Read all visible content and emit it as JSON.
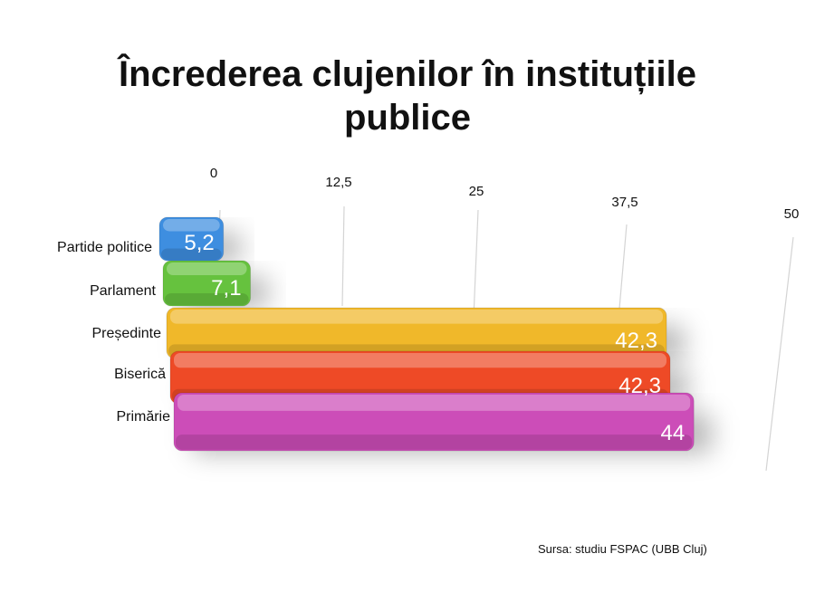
{
  "title": "Încrederea clujenilor în instituțiile\npublice",
  "source": "Sursa: studiu FSPAC (UBB Cluj)",
  "chart_data": {
    "type": "bar",
    "orientation": "horizontal",
    "title": "Încrederea clujenilor în instituțiile publice",
    "categories": [
      "Partide politice",
      "Parlament",
      "Președinte",
      "Biserică",
      "Primărie"
    ],
    "values": [
      5.2,
      7.1,
      42.3,
      42.3,
      44
    ],
    "value_labels": [
      "5,2",
      "7,1",
      "42,3",
      "42,3",
      "44"
    ],
    "colors": [
      "#3e8ee0",
      "#66c23e",
      "#f0b82a",
      "#ee4a26",
      "#cc4db8"
    ],
    "xlim": [
      0,
      50
    ],
    "ticks": [
      0,
      12.5,
      25,
      37.5,
      50
    ],
    "tick_labels": [
      "0",
      "12,5",
      "25",
      "37,5",
      "50"
    ],
    "grid": true
  }
}
